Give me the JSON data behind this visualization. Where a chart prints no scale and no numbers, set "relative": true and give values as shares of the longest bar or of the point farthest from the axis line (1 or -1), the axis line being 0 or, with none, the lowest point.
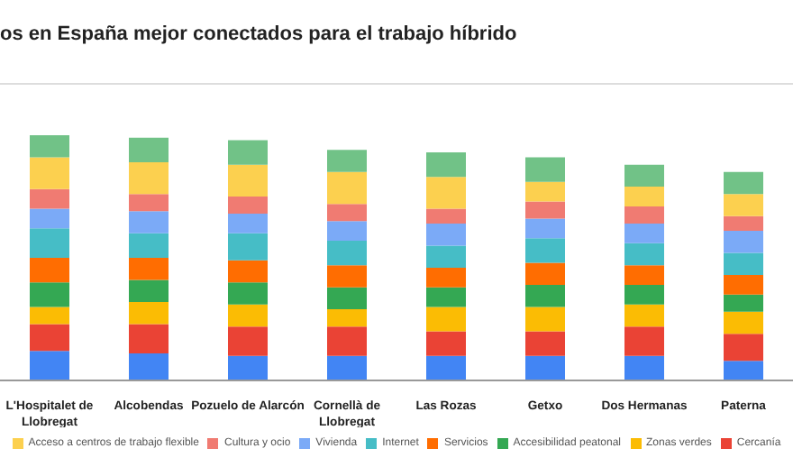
{
  "chart_data": {
    "type": "bar",
    "title": "os en España mejor conectados para el trabajo híbrido",
    "stacked": true,
    "relative": true,
    "legend": "bottom",
    "categories": [
      "L'Hospitalet de Llobregat",
      "Alcobendas",
      "Pozuelo de Alarcón",
      "Cornellà de Llobregat",
      "Las Rozas",
      "Getxo",
      "Dos Hermanas",
      "Paterna"
    ],
    "series": [
      {
        "color": "#4285f4",
        "values": [
          0.12,
          0.11,
          0.1,
          0.1,
          0.1,
          0.1,
          0.1,
          0.08
        ]
      },
      {
        "name": "Cercanía",
        "color": "#ea4335",
        "values": [
          0.11,
          0.12,
          0.12,
          0.12,
          0.1,
          0.1,
          0.12,
          0.11
        ]
      },
      {
        "name": "Zonas verdes",
        "color": "#fbbc04",
        "values": [
          0.07,
          0.09,
          0.09,
          0.07,
          0.1,
          0.1,
          0.09,
          0.09
        ]
      },
      {
        "name": "Accesibilidad peatonal",
        "color": "#34a853",
        "values": [
          0.1,
          0.09,
          0.09,
          0.09,
          0.08,
          0.09,
          0.08,
          0.07
        ]
      },
      {
        "name": "Servicios",
        "color": "#ff6d01",
        "values": [
          0.1,
          0.09,
          0.09,
          0.09,
          0.08,
          0.09,
          0.08,
          0.08
        ]
      },
      {
        "name": "Internet",
        "color": "#46bdc6",
        "values": [
          0.12,
          0.1,
          0.11,
          0.1,
          0.09,
          0.1,
          0.09,
          0.09
        ]
      },
      {
        "name": "Vivienda",
        "color": "#7baaf7",
        "values": [
          0.08,
          0.09,
          0.08,
          0.08,
          0.09,
          0.08,
          0.08,
          0.09
        ]
      },
      {
        "name": "Cultura y ocio",
        "color": "#f07b72",
        "values": [
          0.08,
          0.07,
          0.07,
          0.07,
          0.06,
          0.07,
          0.07,
          0.06
        ]
      },
      {
        "name": "Acceso a centros de trabajo flexible",
        "color": "#fcd04f",
        "values": [
          0.13,
          0.13,
          0.13,
          0.13,
          0.13,
          0.08,
          0.08,
          0.09
        ]
      },
      {
        "color": "#71c287",
        "values": [
          0.09,
          0.1,
          0.1,
          0.09,
          0.1,
          0.1,
          0.09,
          0.09
        ]
      }
    ]
  }
}
